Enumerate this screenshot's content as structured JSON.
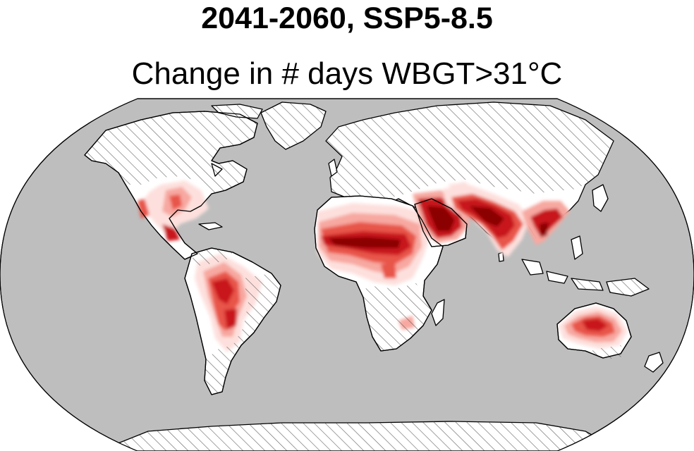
{
  "title": "2041-2060, SSP5-8.5",
  "subtitle": "Change in # days WBGT>31°C",
  "map": {
    "projection": "Robinson",
    "colors": {
      "ocean": "#bebebe",
      "land": "#ffffff",
      "outline": "#000000",
      "hatch": "#3c3c3c",
      "heat_levels": [
        "#fde0dd",
        "#f7a8a0",
        "#e8554a",
        "#c8141c",
        "#8b0000"
      ]
    }
  }
}
